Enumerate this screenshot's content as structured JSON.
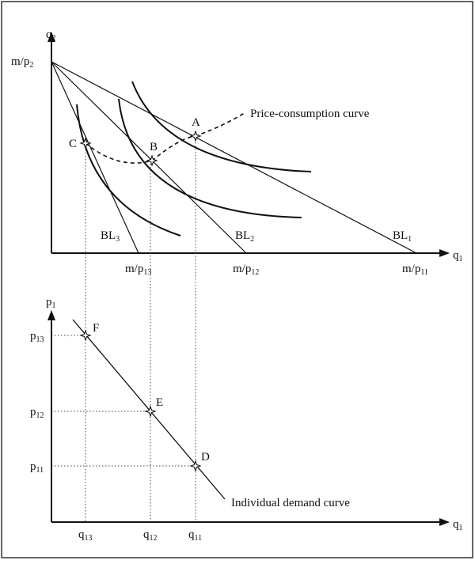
{
  "top_panel": {
    "y_axis_label": {
      "base": "q",
      "sub": "2"
    },
    "x_axis_label": {
      "base": "q",
      "sub": "1"
    },
    "y_intercept_label": {
      "base": "m/p",
      "sub": "2"
    },
    "x_intercepts": [
      {
        "base": "m/p",
        "sub": "13"
      },
      {
        "base": "m/p",
        "sub": "12"
      },
      {
        "base": "m/p",
        "sub": "11"
      }
    ],
    "budget_lines": [
      {
        "base": "BL",
        "sub": "3"
      },
      {
        "base": "BL",
        "sub": "2"
      },
      {
        "base": "BL",
        "sub": "1"
      }
    ],
    "points": [
      "C",
      "B",
      "A"
    ],
    "price_consumption_label": "Price-consumption curve"
  },
  "bottom_panel": {
    "y_axis_label": {
      "base": "p",
      "sub": "1"
    },
    "x_axis_label": {
      "base": "q",
      "sub": "1"
    },
    "price_labels": [
      {
        "base": "p",
        "sub": "13"
      },
      {
        "base": "p",
        "sub": "12"
      },
      {
        "base": "p",
        "sub": "11"
      }
    ],
    "quantity_labels": [
      {
        "base": "q",
        "sub": "13"
      },
      {
        "base": "q",
        "sub": "12"
      },
      {
        "base": "q",
        "sub": "11"
      }
    ],
    "points": [
      "F",
      "E",
      "D"
    ],
    "demand_label": "Individual demand curve"
  }
}
